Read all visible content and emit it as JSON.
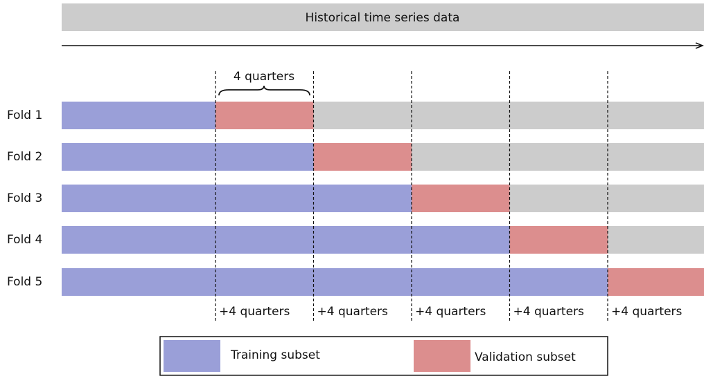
{
  "header": {
    "title": "Historical time series data"
  },
  "brace_label": "4 quarters",
  "folds": [
    {
      "label": "Fold 1"
    },
    {
      "label": "Fold 2"
    },
    {
      "label": "Fold 3"
    },
    {
      "label": "Fold 4"
    },
    {
      "label": "Fold 5"
    }
  ],
  "increment_labels": [
    "+4 quarters",
    "+4 quarters",
    "+4 quarters",
    "+4 quarters",
    "+4 quarters"
  ],
  "legend": [
    {
      "label": "Training subset"
    },
    {
      "label": "Validation subset"
    }
  ]
}
